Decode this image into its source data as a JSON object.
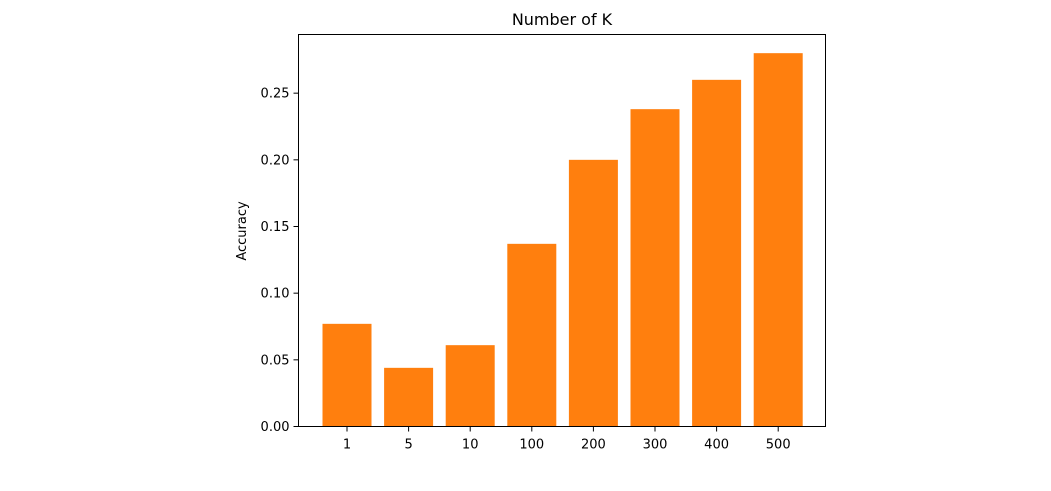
{
  "chart_data": {
    "type": "bar",
    "title": "Number of K",
    "xlabel": "",
    "ylabel": "Accuracy",
    "categories": [
      "1",
      "5",
      "10",
      "100",
      "200",
      "300",
      "400",
      "500"
    ],
    "values": [
      0.077,
      0.044,
      0.061,
      0.137,
      0.2,
      0.238,
      0.26,
      0.28
    ],
    "ylim": [
      0,
      0.294
    ],
    "yticks": [
      "0.00",
      "0.05",
      "0.10",
      "0.15",
      "0.20",
      "0.25"
    ],
    "bar_color": "#ff7f0e",
    "grid": false,
    "legend": "none"
  }
}
